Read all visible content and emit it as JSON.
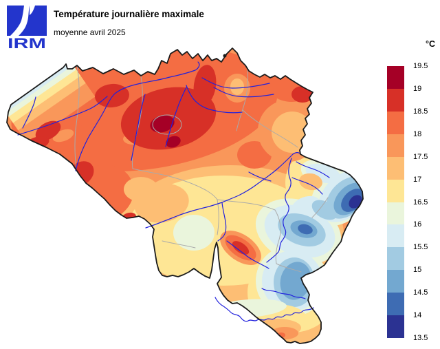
{
  "header": {
    "logo_text": "IRM",
    "logo_color": "#2335CC",
    "title": "Température journalière maximale",
    "subtitle": "moyenne avril 2025"
  },
  "legend": {
    "unit": "°C",
    "ticks": [
      "19.5",
      "19",
      "18.5",
      "18",
      "17.5",
      "17",
      "16.5",
      "16",
      "15.5",
      "15",
      "14.5",
      "14",
      "13.5"
    ],
    "bins": [
      {
        "range": "19 – 19.5",
        "color": "#A50026"
      },
      {
        "range": "18.5 – 19",
        "color": "#D73027"
      },
      {
        "range": "18 – 18.5",
        "color": "#F46D43"
      },
      {
        "range": "17.5 – 18",
        "color": "#F9975A"
      },
      {
        "range": "17 – 17.5",
        "color": "#FDBE74"
      },
      {
        "range": "16.5 – 17",
        "color": "#FEE695"
      },
      {
        "range": "16 – 16.5",
        "color": "#EAF5DC"
      },
      {
        "range": "15.5 – 16",
        "color": "#D8ECF3"
      },
      {
        "range": "15 – 15.5",
        "color": "#A2CBE2"
      },
      {
        "range": "14.5 – 15",
        "color": "#73A8D0"
      },
      {
        "range": "14 – 14.5",
        "color": "#3E6CB3"
      },
      {
        "range": "13.5 – 14",
        "color": "#2B3292"
      }
    ]
  },
  "map": {
    "border_color": "#1A1A1A",
    "province_border_color": "#AAAAAA",
    "river_color": "#2121DD",
    "layers": [
      "temperature-field",
      "province-borders",
      "rivers",
      "country-border"
    ],
    "hottest_bin": "19 – 19.5",
    "coldest_bin": "13.5 – 14"
  }
}
